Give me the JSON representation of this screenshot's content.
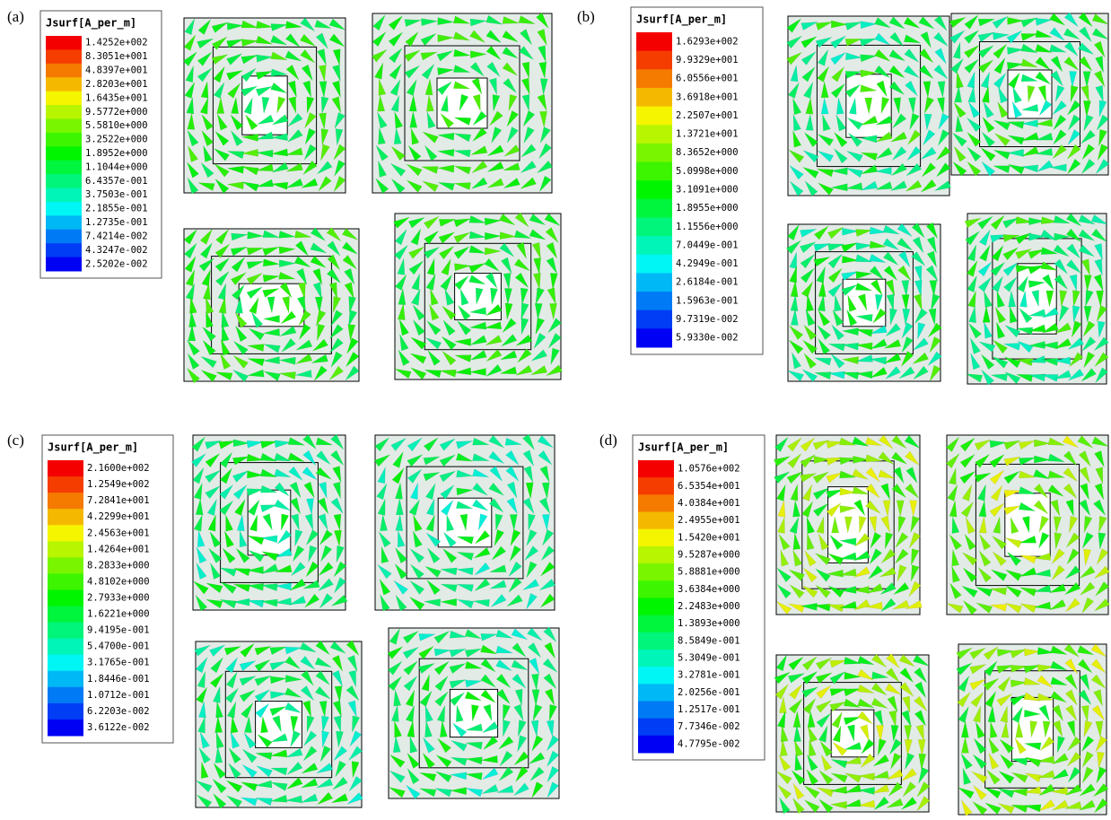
{
  "panels": [
    {
      "label": "(a)",
      "legend": {
        "title": "Jsurf[A_per_m]",
        "values": [
          "1.4252e+002",
          "8.3051e+001",
          "4.8397e+001",
          "2.8203e+001",
          "1.6435e+001",
          "9.5772e+000",
          "5.5810e+000",
          "3.2522e+000",
          "1.8952e+000",
          "1.1044e+000",
          "6.4357e-001",
          "3.7503e-001",
          "2.1855e-001",
          "1.2735e-001",
          "7.4214e-002",
          "4.3247e-002",
          "2.5202e-002"
        ]
      }
    },
    {
      "label": "(b)",
      "legend": {
        "title": "Jsurf[A_per_m]",
        "values": [
          "1.6293e+002",
          "9.9329e+001",
          "6.0556e+001",
          "3.6918e+001",
          "2.2507e+001",
          "1.3721e+001",
          "8.3652e+000",
          "5.0998e+000",
          "3.1091e+000",
          "1.8955e+000",
          "1.1556e+000",
          "7.0449e-001",
          "4.2949e-001",
          "2.6184e-001",
          "1.5963e-001",
          "9.7319e-002",
          "5.9330e-002"
        ]
      }
    },
    {
      "label": "(c)",
      "legend": {
        "title": "Jsurf[A_per_m]",
        "values": [
          "2.1600e+002",
          "1.2549e+002",
          "7.2841e+001",
          "4.2299e+001",
          "2.4563e+001",
          "1.4264e+001",
          "8.2833e+000",
          "4.8102e+000",
          "2.7933e+000",
          "1.6221e+000",
          "9.4195e-001",
          "5.4700e-001",
          "3.1765e-001",
          "1.8446e-001",
          "1.0712e-001",
          "6.2203e-002",
          "3.6122e-002"
        ]
      }
    },
    {
      "label": "(d)",
      "legend": {
        "title": "Jsurf[A_per_m]",
        "values": [
          "1.0576e+002",
          "6.5354e+001",
          "4.0384e+001",
          "2.4955e+001",
          "1.5420e+001",
          "9.5287e+000",
          "5.8881e+000",
          "3.6384e+000",
          "2.2483e+000",
          "1.3893e+000",
          "8.5849e-001",
          "5.3049e-001",
          "3.2781e-001",
          "2.0256e-001",
          "1.2517e-001",
          "7.7346e-002",
          "4.7795e-002"
        ]
      }
    }
  ]
}
